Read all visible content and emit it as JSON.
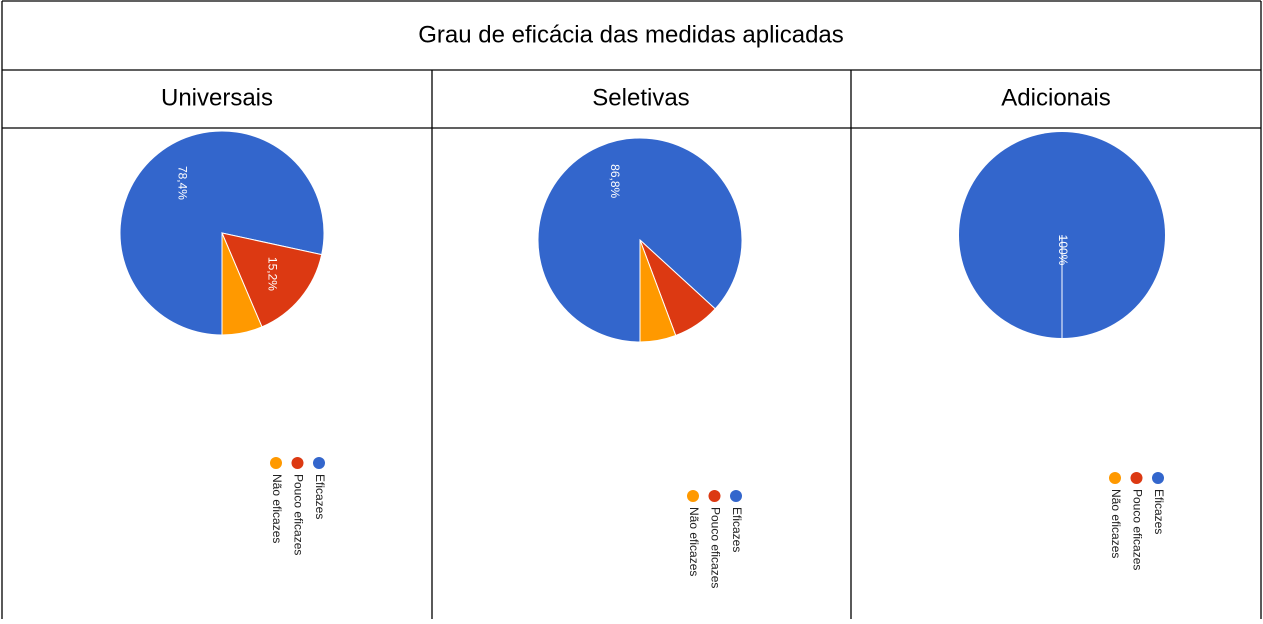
{
  "title": "Grau de eficácia das medidas aplicadas",
  "chart_data": [
    {
      "type": "pie",
      "title": "Universais",
      "categories": [
        "Eficazes",
        "Pouco eficazes",
        "Não eficazes"
      ],
      "colors": [
        "#3366cc",
        "#dc3912",
        "#ff9900"
      ],
      "values": [
        78.4,
        15.2,
        6.4
      ],
      "value_labels": [
        "78,4%",
        "15,2%",
        null
      ]
    },
    {
      "type": "pie",
      "title": "Seletivas",
      "categories": [
        "Eficazes",
        "Pouco eficazes",
        "Não eficazes"
      ],
      "colors": [
        "#3366cc",
        "#dc3912",
        "#ff9900"
      ],
      "values": [
        86.8,
        7.5,
        5.7
      ],
      "value_labels": [
        "86,8%",
        null,
        null
      ]
    },
    {
      "type": "pie",
      "title": "Adicionais",
      "categories": [
        "Eficazes",
        "Pouco eficazes",
        "Não eficazes"
      ],
      "colors": [
        "#3366cc",
        "#dc3912",
        "#ff9900"
      ],
      "values": [
        100,
        0,
        0
      ],
      "value_labels": [
        "100%",
        null,
        null
      ]
    }
  ]
}
